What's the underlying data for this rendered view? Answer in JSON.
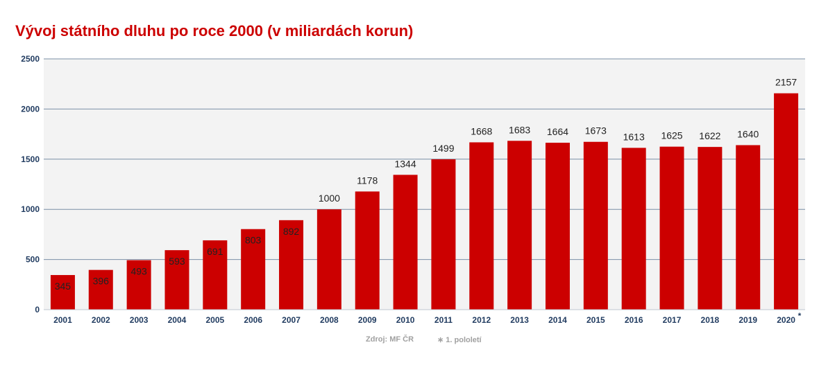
{
  "chart_data": {
    "type": "bar",
    "title": "Vývoj státního dluhu po roce 2000 (v miliardách korun)",
    "categories": [
      "2001",
      "2002",
      "2003",
      "2004",
      "2005",
      "2006",
      "2007",
      "2008",
      "2009",
      "2010",
      "2011",
      "2012",
      "2013",
      "2014",
      "2015",
      "2016",
      "2017",
      "2018",
      "2019",
      "2020"
    ],
    "category_marks": {
      "2020": "*"
    },
    "values": [
      345,
      396,
      493,
      593,
      691,
      803,
      892,
      1000,
      1178,
      1344,
      1499,
      1668,
      1683,
      1664,
      1673,
      1613,
      1625,
      1622,
      1640,
      2157
    ],
    "ylim": [
      0,
      2500
    ],
    "yticks": [
      0,
      500,
      1000,
      1500,
      2000,
      2500
    ],
    "grid": true,
    "legend": "none",
    "colors": {
      "bar": "#cc0000",
      "title": "#cc0000",
      "plot_background": "#f3f3f3",
      "gridline": "#7a8fa6",
      "axis_text": "#1f3a5f"
    }
  },
  "footer": {
    "source": "Zdroj: MF ČR",
    "note": "∗ 1. pololetí"
  }
}
